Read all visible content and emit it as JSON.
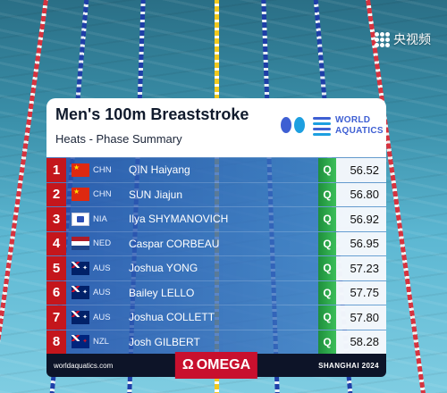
{
  "broadcaster": {
    "logo_text": "央视频"
  },
  "panel": {
    "title": "Men's 100m Breaststroke",
    "subtitle": "Heats - Phase Summary",
    "org_logo_line1": "WORLD",
    "org_logo_line2": "AQUATICS",
    "q_color": "#2fae4a",
    "rank_color": "#c4161c"
  },
  "results": [
    {
      "rank": "1",
      "flag": "chn",
      "code": "CHN",
      "name": "QIN Haiyang",
      "q": "Q",
      "time": "56.52"
    },
    {
      "rank": "2",
      "flag": "chn",
      "code": "CHN",
      "name": "SUN Jiajun",
      "q": "Q",
      "time": "56.80"
    },
    {
      "rank": "3",
      "flag": "nia",
      "code": "NIA",
      "name": "Ilya SHYMANOVICH",
      "q": "Q",
      "time": "56.92"
    },
    {
      "rank": "4",
      "flag": "ned",
      "code": "NED",
      "name": "Caspar CORBEAU",
      "q": "Q",
      "time": "56.95"
    },
    {
      "rank": "5",
      "flag": "aus",
      "code": "AUS",
      "name": "Joshua YONG",
      "q": "Q",
      "time": "57.23"
    },
    {
      "rank": "6",
      "flag": "aus",
      "code": "AUS",
      "name": "Bailey LELLO",
      "q": "Q",
      "time": "57.75"
    },
    {
      "rank": "7",
      "flag": "aus",
      "code": "AUS",
      "name": "Joshua COLLETT",
      "q": "Q",
      "time": "57.80"
    },
    {
      "rank": "8",
      "flag": "nzl",
      "code": "NZL",
      "name": "Josh GILBERT",
      "q": "Q",
      "time": "58.28"
    }
  ],
  "footer": {
    "website": "worldaquatics.com",
    "sponsor_symbol": "Ω",
    "sponsor": "OMEGA",
    "event_location": "SHANGHAI 2024"
  }
}
